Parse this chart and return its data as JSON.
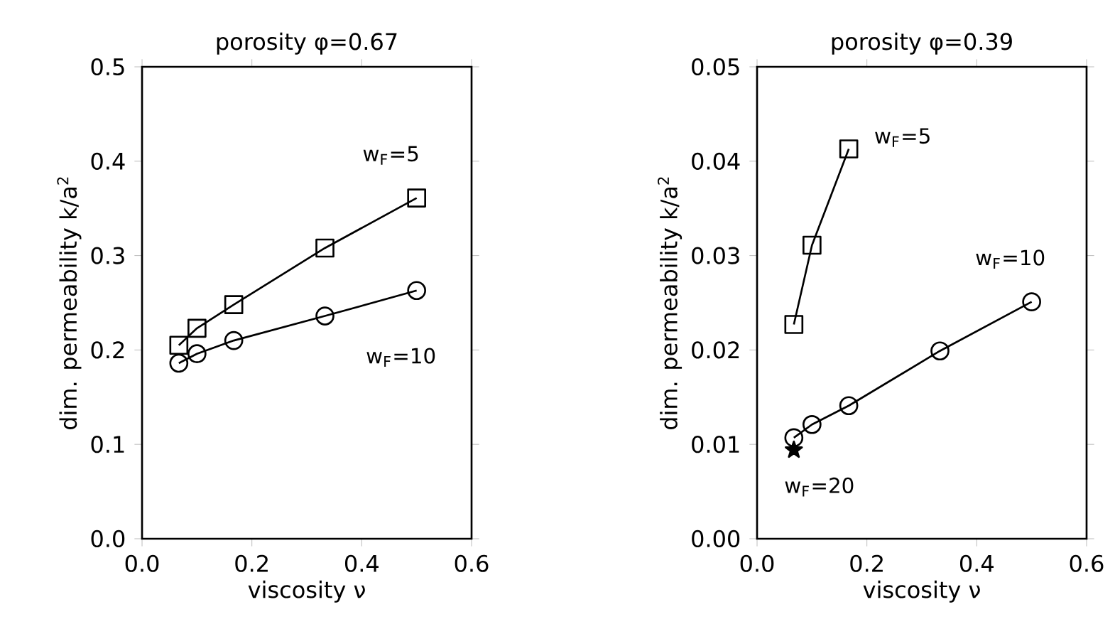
{
  "chart_data": [
    {
      "type": "line",
      "title": "porosity  φ=0.67",
      "xlabel": "viscosity  ν",
      "ylabel": "dim. permeability  k/a$^{2}$",
      "xlim": [
        0,
        0.6
      ],
      "ylim": [
        0,
        0.5
      ],
      "xticks": [
        {
          "value": 0,
          "label": "0.0"
        },
        {
          "value": 0.2,
          "label": "0.2"
        },
        {
          "value": 0.4,
          "label": "0.4"
        },
        {
          "value": 0.6,
          "label": "0.6"
        }
      ],
      "yticks": [
        {
          "value": 0,
          "label": "0.0"
        },
        {
          "value": 0.1,
          "label": "0.1"
        },
        {
          "value": 0.2,
          "label": "0.2"
        },
        {
          "value": 0.3,
          "label": "0.3"
        },
        {
          "value": 0.4,
          "label": "0.4"
        },
        {
          "value": 0.5,
          "label": "0.5"
        }
      ],
      "line_style": "solid",
      "series": [
        {
          "name": "w$_{F}$=5",
          "color": "#000000",
          "marker": "square",
          "x": [
            0.067,
            0.1,
            0.167,
            0.333,
            0.5
          ],
          "values": [
            0.205,
            0.223,
            0.248,
            0.308,
            0.361
          ]
        },
        {
          "name": "w$_{F}$=10",
          "color": "#000000",
          "marker": "circle",
          "x": [
            0.067,
            0.1,
            0.167,
            0.333,
            0.5
          ],
          "values": [
            0.186,
            0.196,
            0.21,
            0.236,
            0.263
          ]
        }
      ]
    },
    {
      "type": "line",
      "title": "porosity  φ=0.39",
      "xlabel": "viscosity  ν",
      "ylabel": "dim. permeability  k/a$^{2}$",
      "xlim": [
        0,
        0.6
      ],
      "ylim": [
        0,
        0.05
      ],
      "xticks": [
        {
          "value": 0,
          "label": "0.0"
        },
        {
          "value": 0.2,
          "label": "0.2"
        },
        {
          "value": 0.4,
          "label": "0.4"
        },
        {
          "value": 0.6,
          "label": "0.6"
        }
      ],
      "yticks": [
        {
          "value": 0,
          "label": "0.00"
        },
        {
          "value": 0.01,
          "label": "0.01"
        },
        {
          "value": 0.02,
          "label": "0.02"
        },
        {
          "value": 0.03,
          "label": "0.03"
        },
        {
          "value": 0.04,
          "label": "0.04"
        },
        {
          "value": 0.05,
          "label": "0.05"
        }
      ],
      "line_style": "solid",
      "series": [
        {
          "name": "w$_{F}$=5",
          "color": "#000000",
          "marker": "square",
          "x": [
            0.067,
            0.1,
            0.167
          ],
          "values": [
            0.0227,
            0.0311,
            0.0413
          ]
        },
        {
          "name": "w$_{F}$=10",
          "color": "#000000",
          "marker": "circle",
          "x": [
            0.067,
            0.1,
            0.167,
            0.333,
            0.5
          ],
          "values": [
            0.0107,
            0.0121,
            0.0141,
            0.0199,
            0.0251
          ]
        },
        {
          "name": "w$_{F}$=20",
          "type": "scatter",
          "color": "#000000",
          "marker": "star",
          "x": [
            0.067
          ],
          "values": [
            0.0094
          ]
        }
      ]
    }
  ]
}
